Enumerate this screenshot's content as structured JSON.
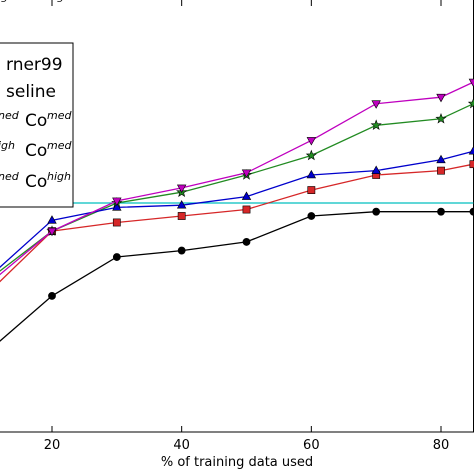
{
  "chart_data": {
    "type": "line",
    "xlabel": "% of training data used",
    "ylabel": "",
    "title": "",
    "xlim": [
      10,
      85
    ],
    "ylim": [
      0,
      1
    ],
    "xticks": [
      20,
      40,
      60,
      80
    ],
    "grid": false,
    "legend_position": "top-left",
    "reference_line": {
      "y": 0.53,
      "color": "#00bfbf"
    },
    "series": [
      {
        "name_main": "rner99",
        "name_sup": "",
        "color": "#000000",
        "marker": "circle",
        "x": [
          10,
          20,
          30,
          40,
          50,
          60,
          70,
          80,
          85
        ],
        "y": [
          0.185,
          0.315,
          0.405,
          0.42,
          0.44,
          0.5,
          0.51,
          0.51,
          0.51
        ]
      },
      {
        "name_main": "seline",
        "name_sup": "",
        "color": "#00bfbf",
        "marker": "none",
        "x": [
          10,
          85
        ],
        "y": [
          0.53,
          0.53
        ]
      },
      {
        "name_main": "Co",
        "name_prefix": "ned",
        "name_sup": "med",
        "color": "#d62728",
        "marker": "square",
        "x": [
          10,
          20,
          30,
          40,
          50,
          60,
          70,
          80,
          85
        ],
        "y": [
          0.32,
          0.465,
          0.485,
          0.5,
          0.515,
          0.56,
          0.595,
          0.605,
          0.62
        ]
      },
      {
        "name_main": "Co",
        "name_prefix": "igh",
        "name_sup": "med",
        "color": "#228b22",
        "marker": "star",
        "x": [
          10,
          20,
          30,
          40,
          50,
          60,
          70,
          80,
          85
        ],
        "y": [
          0.35,
          0.465,
          0.53,
          0.555,
          0.595,
          0.64,
          0.71,
          0.725,
          0.76
        ]
      },
      {
        "name_main": "Co",
        "name_prefix": "ned",
        "name_sup": "high",
        "color": "#0000cc",
        "marker": "triangle-up",
        "x": [
          10,
          20,
          30,
          40,
          50,
          60,
          70,
          80,
          85
        ],
        "y": [
          0.355,
          0.49,
          0.52,
          0.525,
          0.545,
          0.595,
          0.605,
          0.63,
          0.65
        ]
      },
      {
        "name_main": "Co",
        "name_prefix": "igh",
        "name_sup": "high",
        "color": "#bf00bf",
        "marker": "triangle-down",
        "x": [
          10,
          20,
          30,
          40,
          50,
          60,
          70,
          80,
          85
        ],
        "y": [
          0.34,
          0.465,
          0.535,
          0.565,
          0.6,
          0.675,
          0.76,
          0.775,
          0.81
        ]
      }
    ]
  }
}
